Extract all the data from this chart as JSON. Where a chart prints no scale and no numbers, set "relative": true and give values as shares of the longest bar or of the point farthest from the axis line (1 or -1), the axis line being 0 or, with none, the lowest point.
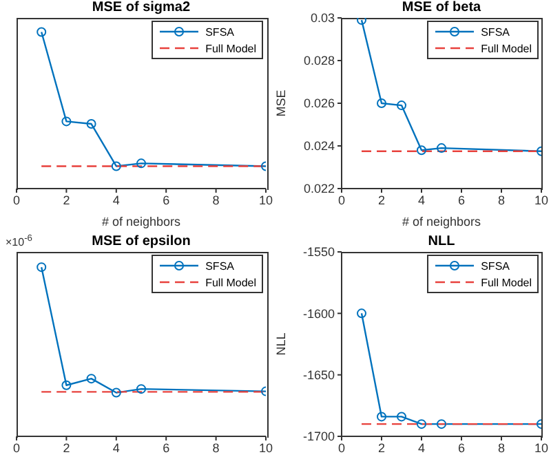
{
  "chart_data": [
    {
      "type": "line",
      "title": "MSE of sigma2",
      "xlabel": "# of neighbors",
      "relative": true,
      "tick_labels": "x",
      "legend": "top right",
      "xlim": [
        0,
        10
      ],
      "xticks": [
        0,
        2,
        4,
        6,
        8,
        10
      ],
      "x": [
        1,
        2,
        3,
        4,
        5,
        10
      ],
      "series": [
        {
          "name": "SFSA",
          "color": "#0072bd",
          "marker": "circle",
          "values": [
            1,
            0.429,
            0.413,
            0.143,
            0.161,
            0.143
          ]
        },
        {
          "name": "Full Model",
          "color": "#e8413c",
          "marker": "none",
          "line_style": "dashed",
          "values": [
            0.143,
            0.143,
            0.143,
            0.143,
            0.143,
            0.143
          ]
        }
      ]
    },
    {
      "type": "line",
      "title": "MSE of beta",
      "xlabel": "# of neighbors",
      "ylabel": "MSE",
      "legend": "top right",
      "xlim": [
        0,
        10
      ],
      "xticks": [
        0,
        2,
        4,
        6,
        8,
        10
      ],
      "ylim": [
        0.022,
        0.03
      ],
      "yticks": [
        0.022,
        0.024,
        0.026,
        0.028,
        0.03
      ],
      "x": [
        1,
        2,
        3,
        4,
        5,
        10
      ],
      "series": [
        {
          "name": "SFSA",
          "color": "#0072bd",
          "marker": "circle",
          "values": [
            0.0299,
            0.026,
            0.0259,
            0.0238,
            0.0239,
            0.02375
          ]
        },
        {
          "name": "Full Model",
          "color": "#e8413c",
          "marker": "none",
          "line_style": "dashed",
          "values": [
            0.02375,
            0.02375,
            0.02375,
            0.02375,
            0.02375,
            0.02375
          ]
        }
      ]
    },
    {
      "type": "line",
      "title": "MSE of epsilon",
      "annotations": [
        "×10$^{-6}$"
      ],
      "relative": true,
      "tick_labels": "x",
      "legend": "top right",
      "xlim": [
        0,
        10
      ],
      "xticks": [
        0,
        2,
        4,
        6,
        8,
        10
      ],
      "x": [
        1,
        2,
        3,
        4,
        5,
        10
      ],
      "series": [
        {
          "name": "SFSA",
          "color": "#0072bd",
          "marker": "circle",
          "values": [
            1,
            0.302,
            0.341,
            0.258,
            0.28,
            0.266
          ]
        },
        {
          "name": "Full Model",
          "color": "#e8413c",
          "marker": "none",
          "line_style": "dashed",
          "values": [
            0.263,
            0.263,
            0.263,
            0.263,
            0.263,
            0.263
          ]
        }
      ]
    },
    {
      "type": "line",
      "title": "NLL",
      "ylabel": "NLL",
      "legend": "top right",
      "xlim": [
        0,
        10
      ],
      "xticks": [
        0,
        2,
        4,
        6,
        8,
        10
      ],
      "ylim": [
        -1700,
        -1550
      ],
      "yticks": [
        -1700,
        -1650,
        -1600,
        -1550
      ],
      "x": [
        1,
        2,
        3,
        4,
        5,
        10
      ],
      "series": [
        {
          "name": "SFSA",
          "color": "#0072bd",
          "marker": "circle",
          "values": [
            -1600,
            -1684,
            -1684,
            -1690,
            -1690,
            -1690
          ]
        },
        {
          "name": "Full Model",
          "color": "#e8413c",
          "marker": "none",
          "line_style": "dashed",
          "values": [
            -1690,
            -1690,
            -1690,
            -1690,
            -1690,
            -1690
          ]
        }
      ]
    }
  ]
}
